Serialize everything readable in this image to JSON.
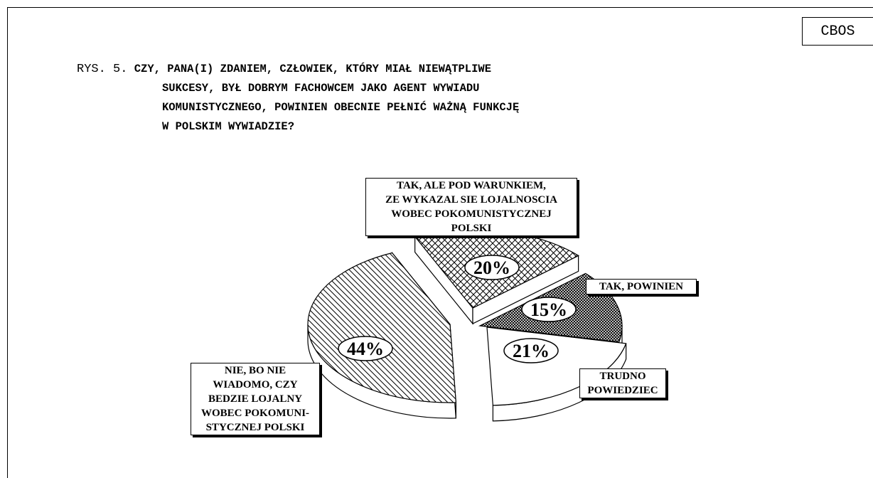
{
  "header": {
    "brand": "CBOS",
    "figure_prefix": "RYS. 5.",
    "title_lines": [
      "CZY, PANA(I) ZDANIEM, CZŁOWIEK, KTÓRY MIAŁ NIEWĄTPLIWE",
      "SUKCESY, BYŁ DOBRYM FACHOWCEM JAKO AGENT WYWIADU",
      "KOMUNISTYCZNEGO, POWINIEN OBECNIE PEŁNIĆ WAŻNĄ FUNKCJĘ",
      "W POLSKIM WYWIADZIE?"
    ]
  },
  "chart_data": {
    "type": "pie",
    "categories": [
      "TAK, ALE POD WARUNKIEM, ZE WYKAZAL SIE LOJALNOSCIA WOBEC POKOMUNISTYCZNEJ POLSKI",
      "TAK, POWINIEN",
      "TRUDNO POWIEDZIEC",
      "NIE, BO NIE WIADOMO, CZY BEDZIE LOJALNY WOBEC POKOMUNISTYCZNEJ POLSKI"
    ],
    "values": [
      20,
      15,
      21,
      44
    ],
    "value_labels": [
      "20%",
      "15%",
      "21%",
      "44%"
    ],
    "label_lines": [
      [
        "TAK, ALE POD WARUNKIEM,",
        "ZE WYKAZAL SIE LOJALNOSCIA",
        "WOBEC POKOMUNISTYCZNEJ",
        "POLSKI"
      ],
      [
        "TAK, POWINIEN"
      ],
      [
        "TRUDNO",
        "POWIEDZIEC"
      ],
      [
        "NIE, BO NIE",
        "WIADOMO, CZY",
        "BEDZIE LOJALNY",
        "WOBEC POKOMUNI-",
        "STYCZNEJ POLSKI"
      ]
    ],
    "patterns": [
      "crosshatch",
      "dense-crosshatch",
      "none",
      "diagonal-lines"
    ],
    "exploded": [
      true,
      false,
      false,
      true
    ],
    "three_d": true
  }
}
